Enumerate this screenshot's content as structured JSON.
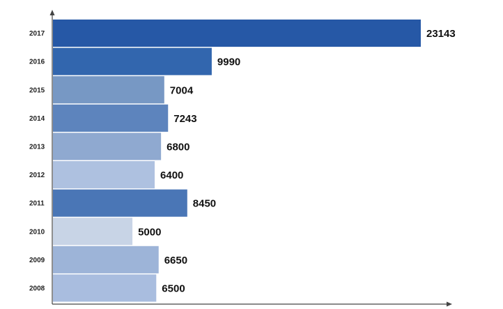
{
  "chart_data": {
    "type": "bar",
    "orientation": "horizontal",
    "title": "",
    "xlabel": "",
    "ylabel": "",
    "categories": [
      "2017",
      "2016",
      "2015",
      "2014",
      "2013",
      "2012",
      "2011",
      "2010",
      "2009",
      "2008"
    ],
    "values": [
      23143,
      9990,
      7004,
      7243,
      6800,
      6400,
      8450,
      5000,
      6650,
      6500
    ],
    "bar_colors": [
      "#2658a6",
      "#3266ae",
      "#7798c4",
      "#5d84bd",
      "#8fa9d0",
      "#aec1e0",
      "#4a76b6",
      "#c8d4e6",
      "#9db4d8",
      "#a9bddf"
    ],
    "xlim": [
      0,
      23800
    ],
    "grid": false,
    "legend": "none"
  }
}
